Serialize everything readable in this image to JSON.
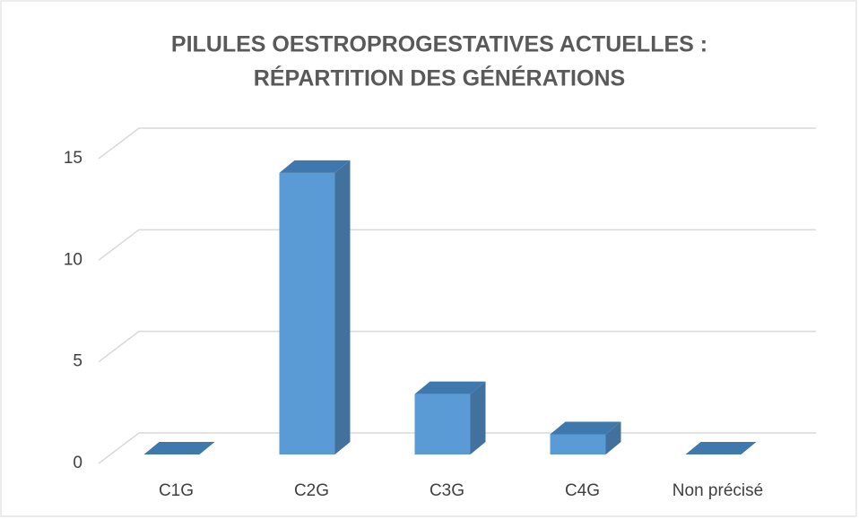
{
  "chart_data": {
    "type": "bar3d",
    "title": [
      "PILULES OESTROPROGESTATIVES ACTUELLES :",
      "RÉPARTITION DES GÉNÉRATIONS"
    ],
    "categories": [
      "C1G",
      "C2G",
      "C3G",
      "C4G",
      "Non précisé"
    ],
    "values": [
      0,
      14,
      3,
      1,
      0
    ],
    "color": "#5b9bd5",
    "ylim": [
      0,
      15
    ],
    "yticks": [
      0,
      5,
      10,
      15
    ],
    "grid": true
  }
}
